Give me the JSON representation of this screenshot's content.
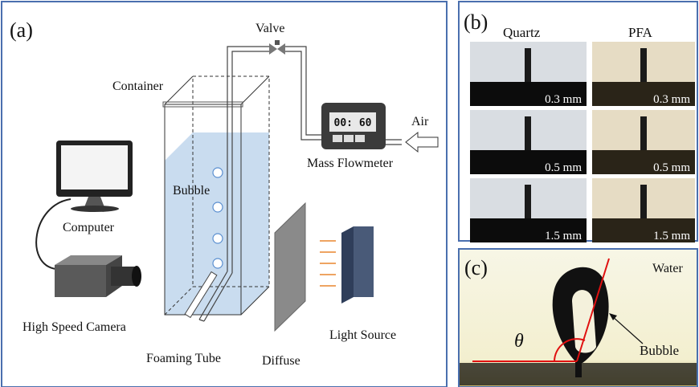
{
  "panel_a": {
    "label": "(a)",
    "valve": "Valve",
    "container": "Container",
    "flowmeter_display": "00: 60",
    "air": "Air",
    "mass_flowmeter": "Mass Flowmeter",
    "bubble": "Bubble",
    "computer": "Computer",
    "camera": "High Speed Camera",
    "foaming_tube": "Foaming Tube",
    "diffuse": "Diffuse",
    "light_source": "Light Source"
  },
  "panel_b": {
    "label": "(b)",
    "columns": [
      "Quartz",
      "PFA"
    ],
    "rows": [
      [
        "0.3 mm",
        "0.3 mm"
      ],
      [
        "0.5 mm",
        "0.5 mm"
      ],
      [
        "1.5 mm",
        "1.5 mm"
      ]
    ]
  },
  "panel_c": {
    "label": "(c)",
    "medium": "Water",
    "angle": "θ",
    "bubble": "Bubble"
  }
}
